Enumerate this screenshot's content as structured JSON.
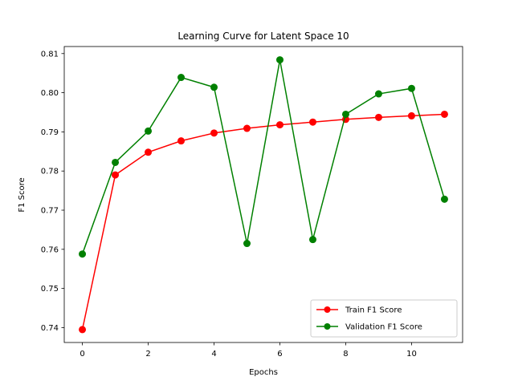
{
  "chart_data": {
    "type": "line",
    "title": "Learning Curve for Latent Space 10",
    "xlabel": "Epochs",
    "ylabel": "F1 Score",
    "x": [
      0,
      1,
      2,
      3,
      4,
      5,
      6,
      7,
      8,
      9,
      10,
      11
    ],
    "xlim": [
      -0.55,
      11.55
    ],
    "ylim": [
      0.7362,
      0.8118
    ],
    "xticks": [
      0,
      2,
      4,
      6,
      8,
      10
    ],
    "yticks": [
      0.74,
      0.75,
      0.76,
      0.77,
      0.78,
      0.79,
      0.8,
      0.81
    ],
    "ytick_labels": [
      "0.74",
      "0.75",
      "0.76",
      "0.77",
      "0.78",
      "0.79",
      "0.80",
      "0.81"
    ],
    "grid": false,
    "legend_position": "lower-right",
    "series": [
      {
        "name": "Train F1 Score",
        "color": "#ff0000",
        "marker": "circle",
        "values": [
          0.7395,
          0.779,
          0.7848,
          0.7877,
          0.7897,
          0.7909,
          0.7918,
          0.7925,
          0.7932,
          0.7937,
          0.7941,
          0.7945
        ]
      },
      {
        "name": "Validation F1 Score",
        "color": "#008000",
        "marker": "circle",
        "values": [
          0.7588,
          0.7822,
          0.7902,
          0.8039,
          0.8014,
          0.7615,
          0.8084,
          0.7625,
          0.7945,
          0.7997,
          0.8011,
          0.7728
        ]
      }
    ]
  }
}
